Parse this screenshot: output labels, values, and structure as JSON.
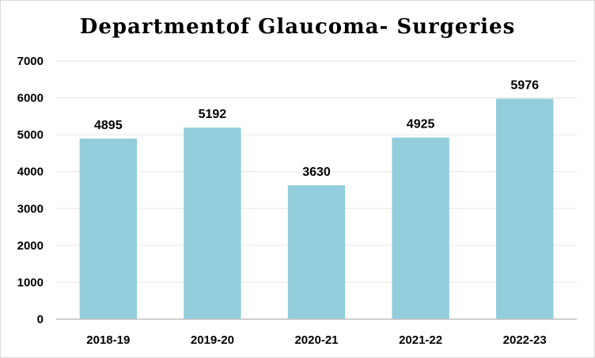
{
  "chart_data": {
    "type": "bar",
    "title": "Departmentof Glaucoma- Surgeries",
    "categories": [
      "2018-19",
      "2019-20",
      "2020-21",
      "2021-22",
      "2022-23"
    ],
    "values": [
      4895,
      5192,
      3630,
      4925,
      5976
    ],
    "data_labels": [
      "4895",
      "5192",
      "3630",
      "4925",
      "5976"
    ],
    "yticks": [
      "0",
      "1000",
      "2000",
      "3000",
      "4000",
      "5000",
      "6000",
      "7000"
    ],
    "ylim": [
      0,
      7000
    ],
    "grid": true,
    "legend": "none",
    "bar_color": "#92cddc",
    "grid_color": "#e6e6e6",
    "axis_color": "#bfbfbf"
  }
}
